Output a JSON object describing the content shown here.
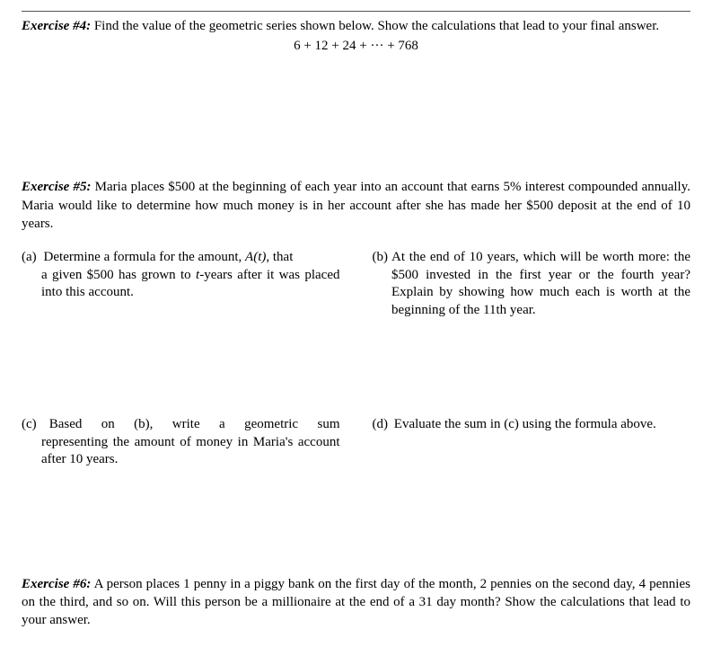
{
  "page": {
    "background_color": "#ffffff",
    "text_color": "#000000",
    "font_family": "Times New Roman",
    "base_font_size_pt": 11
  },
  "exercise4": {
    "label": "Exercise #4:",
    "prompt": "Find the value of the geometric series shown below.  Show the calculations that lead to your final answer.",
    "formula": "6 + 12 + 24 + ··· + 768"
  },
  "exercise5": {
    "label": "Exercise #5:",
    "prompt": "Maria places $500 at the beginning of each year into an account that earns 5% interest compounded annually.  Maria would like to determine how much money is in her account after she has made her $500 deposit at the end of 10 years.",
    "parts": {
      "a": {
        "tag": "(a)",
        "line1": "Determine a formula for the amount, ",
        "fn": "A(t)",
        "line1_tail": ", that",
        "line2": "a given $500 has grown to ",
        "tvar": "t",
        "line2_tail": "-years after it was placed into this account."
      },
      "b": {
        "tag": "(b)",
        "text": "At the end of 10 years, which will be worth more: the $500 invested in the first year or the fourth year? Explain by showing how much each is worth at the beginning of the 11th year."
      },
      "c": {
        "tag": "(c)",
        "text": "Based on (b), write a geometric sum representing the amount of money in Maria's account after 10 years."
      },
      "d": {
        "tag": "(d)",
        "text": "Evaluate the sum in (c) using the formula above."
      }
    }
  },
  "exercise6": {
    "label": "Exercise #6:",
    "prompt": "A person places 1 penny in a piggy bank on the first day of the month, 2 pennies on the second day, 4 pennies on the third, and so on.  Will this person be a millionaire at the end of a 31 day month?  Show the calculations that lead to your answer."
  }
}
